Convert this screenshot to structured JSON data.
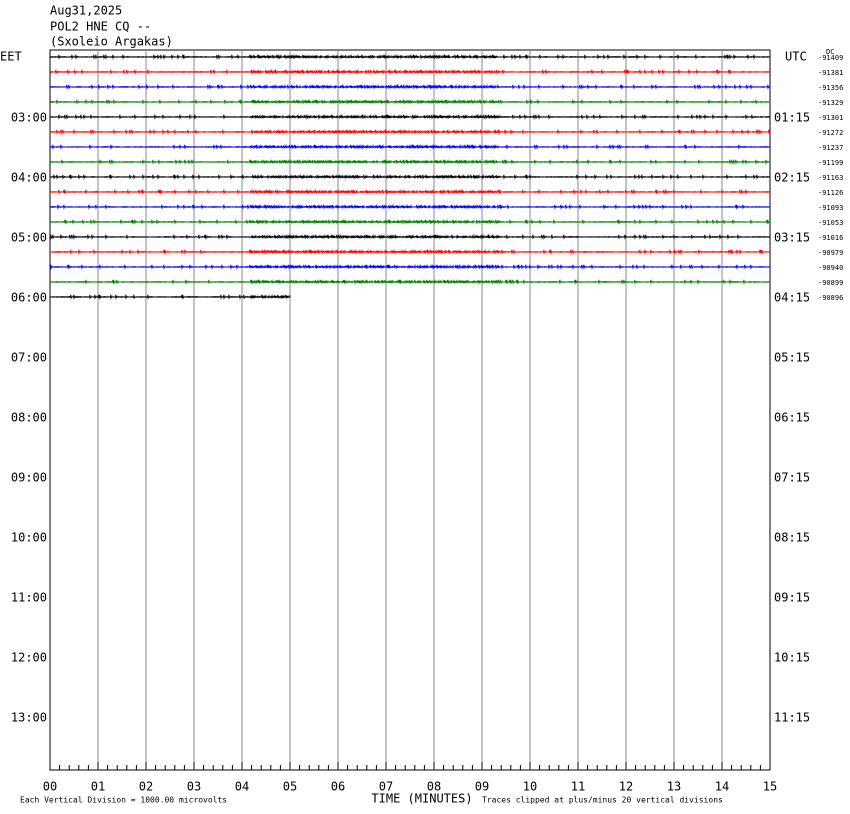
{
  "header": {
    "date": "Aug31,2025",
    "station": "POL2 HNE CQ --",
    "site": "(Sxoleio Argakas)"
  },
  "left_zone": "EET",
  "right_zone": "UTC",
  "dc_label": "DC",
  "left_hours": [
    "03:00",
    "04:00",
    "05:00",
    "06:00",
    "07:00",
    "08:00",
    "09:00",
    "10:00",
    "11:00",
    "12:00",
    "13:00"
  ],
  "right_hours": [
    "01:15",
    "02:15",
    "03:15",
    "04:15",
    "05:15",
    "06:15",
    "07:15",
    "08:15",
    "09:15",
    "10:15",
    "11:15"
  ],
  "dc_offsets": [
    "-91409",
    "-91381",
    "-91356",
    "-91329",
    "-91301",
    "-91272",
    "-91237",
    "-91199",
    "-91163",
    "-91126",
    "-91093",
    "-91053",
    "-91016",
    "-90979",
    "-90940",
    "-90899",
    "-90896"
  ],
  "trace_colors": [
    "#000000",
    "#ff0000",
    "#0000ff",
    "#007f00"
  ],
  "x_labels": [
    "00",
    "01",
    "02",
    "03",
    "04",
    "05",
    "06",
    "07",
    "08",
    "09",
    "10",
    "11",
    "12",
    "13",
    "14",
    "15"
  ],
  "x_title": "TIME (MINUTES)",
  "footer_left": "Each Vertical Division = 1000.00 microvolts",
  "footer_right": "Traces clipped at plus/minus 20 vertical divisions"
}
